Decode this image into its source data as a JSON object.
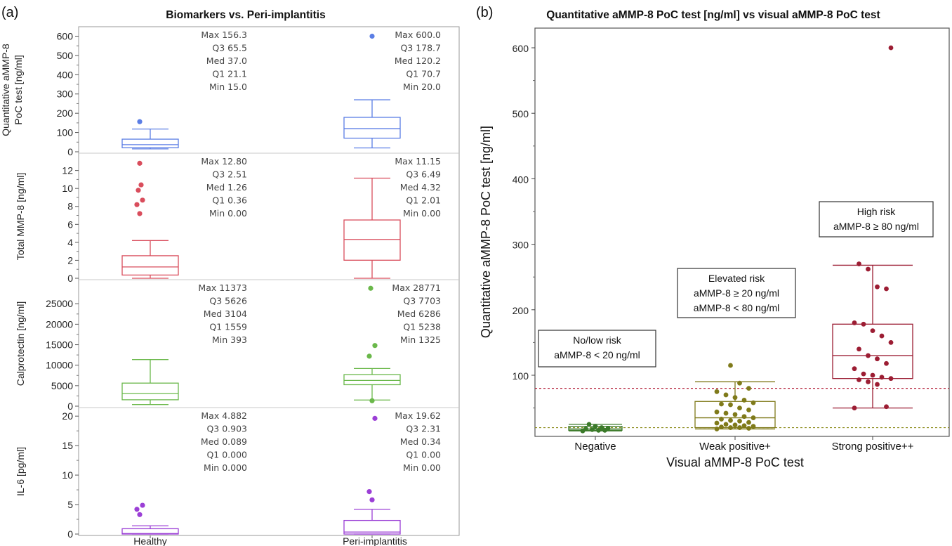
{
  "figure": {
    "panel_a_label": "(a)",
    "panel_b_label": "(b)"
  },
  "chart_data": [
    {
      "type": "box",
      "title": "Biomarkers vs. Peri-implantitis",
      "categories": [
        "Healthy",
        "Peri-implantitis"
      ],
      "subplots": [
        {
          "ylabel": "Quantitative aMMP-8 PoC test [ng/ml]",
          "ylabel_lines": [
            "Quantitative aMMP-8",
            "PoC test [ng/ml]"
          ],
          "ylim": [
            0,
            620
          ],
          "yticks": [
            0,
            100,
            200,
            300,
            400,
            500,
            600
          ],
          "ytick_labels": [
            "0",
            "100",
            "200",
            "300",
            "400",
            "500",
            "600"
          ],
          "color": "#5b7ee5",
          "groups": [
            {
              "whisker_low": 15.0,
              "q1": 21.1,
              "median": 37.0,
              "q3": 65.5,
              "whisker_high": 118,
              "outliers": [
                156.3
              ],
              "stats": [
                "Max 156.3",
                "Q3  65.5",
                "Med 37.0",
                "Q1  21.1",
                "Min 15.0"
              ]
            },
            {
              "whisker_low": 20.0,
              "q1": 70.7,
              "median": 120.2,
              "q3": 178.7,
              "whisker_high": 270,
              "outliers": [
                600.0
              ],
              "stats": [
                "Max 600.0",
                "Q3  178.7",
                "Med 120.2",
                "Q1  70.7",
                "Min 20.0"
              ]
            }
          ]
        },
        {
          "ylabel": "Total MMP-8 [ng/ml]",
          "ylabel_lines": [
            "Total MMP-8 [ng/ml]"
          ],
          "ylim": [
            0,
            13.3
          ],
          "yticks": [
            0,
            2,
            4,
            6,
            8,
            10,
            12
          ],
          "ytick_labels": [
            "0",
            "2",
            "4",
            "6",
            "8",
            "10",
            "12"
          ],
          "color": "#d94d5c",
          "groups": [
            {
              "whisker_low": 0.0,
              "q1": 0.36,
              "median": 1.26,
              "q3": 2.51,
              "whisker_high": 4.2,
              "outliers": [
                7.2,
                8.2,
                8.7,
                9.8,
                10.4,
                12.8
              ],
              "stats": [
                "Max 12.80",
                "Q3  2.51",
                "Med 1.26",
                "Q1  0.36",
                "Min 0.00"
              ]
            },
            {
              "whisker_low": 0.0,
              "q1": 2.01,
              "median": 4.32,
              "q3": 6.49,
              "whisker_high": 11.15,
              "outliers": [],
              "stats": [
                "Max 11.15",
                "Q3  6.49",
                "Med 4.32",
                "Q1  2.01",
                "Min 0.00"
              ]
            }
          ]
        },
        {
          "ylabel": "Calprotectin [ng/ml]",
          "ylabel_lines": [
            "Calprotectin [ng/ml]"
          ],
          "ylim": [
            0,
            29500
          ],
          "yticks": [
            0,
            5000,
            10000,
            15000,
            20000,
            25000
          ],
          "ytick_labels": [
            "0",
            "5000",
            "10000",
            "15000",
            "20000",
            "25000"
          ],
          "color": "#6ab84a",
          "groups": [
            {
              "whisker_low": 393,
              "q1": 1559,
              "median": 3104,
              "q3": 5626,
              "whisker_high": 11373,
              "outliers": [],
              "stats": [
                "Max 11373",
                "Q3  5626",
                "Med 3104",
                "Q1  1559",
                "Min 393"
              ]
            },
            {
              "whisker_low": 1500,
              "q1": 5238,
              "median": 6286,
              "q3": 7703,
              "whisker_high": 9200,
              "outliers": [
                1325,
                12200,
                14800,
                28771
              ],
              "stats": [
                "Max 28771",
                "Q3  7703",
                "Med 6286",
                "Q1  5238",
                "Min 1325"
              ]
            }
          ]
        },
        {
          "ylabel": "IL-6 [pg/ml]",
          "ylabel_lines": [
            "IL-6 [pg/ml]"
          ],
          "ylim": [
            0,
            20.5
          ],
          "yticks": [
            0,
            5,
            10,
            15,
            20
          ],
          "ytick_labels": [
            "0",
            "5",
            "10",
            "15",
            "20"
          ],
          "color": "#9b3fd6",
          "groups": [
            {
              "whisker_low": 0.0,
              "q1": 0.0,
              "median": 0.089,
              "q3": 0.903,
              "whisker_high": 1.4,
              "outliers": [
                3.3,
                4.2,
                4.882
              ],
              "stats": [
                "Max 4.882",
                "Q3  0.903",
                "Med 0.089",
                "Q1  0.000",
                "Min 0.000"
              ]
            },
            {
              "whisker_low": 0.0,
              "q1": 0.0,
              "median": 0.34,
              "q3": 2.31,
              "whisker_high": 4.2,
              "outliers": [
                5.8,
                7.2,
                19.62
              ],
              "stats": [
                "Max 19.62",
                "Q3  2.31",
                "Med 0.34",
                "Q1  0.00",
                "Min 0.00"
              ]
            }
          ]
        }
      ]
    },
    {
      "type": "box",
      "title": "Quantitative aMMP-8 PoC test [ng/ml] vs visual aMMP-8 PoC test",
      "xlabel": "Visual aMMP-8 PoC test",
      "ylabel": "Quantitative aMMP-8 PoC test [ng/ml]",
      "ylim": [
        0,
        640
      ],
      "yticks": [
        100,
        200,
        300,
        400,
        500,
        600
      ],
      "ytick_labels": [
        "100",
        "200",
        "300",
        "400",
        "500",
        "600"
      ],
      "categories": [
        "Negative",
        "Weak positive+",
        "Strong positive++"
      ],
      "reference_lines": [
        {
          "y": 80,
          "color": "#b5223c"
        },
        {
          "y": 20,
          "color": "#8c8c1a"
        }
      ],
      "annotations": [
        {
          "lines": [
            "No/low risk",
            "aMMP-8 < 20 ng/ml"
          ]
        },
        {
          "lines": [
            "Elevated risk",
            "aMMP-8 ≥ 20 ng/ml",
            "aMMP-8 < 80 ng/ml"
          ]
        },
        {
          "lines": [
            "High risk",
            "aMMP-8 ≥ 80 ng/ml"
          ]
        }
      ],
      "groups": [
        {
          "color": "#3b7a2a",
          "whisker_low": 15,
          "q1": 16,
          "median": 18,
          "q3": 22,
          "whisker_high": 25,
          "points": [
            15,
            16,
            16,
            17,
            18,
            19,
            20,
            22,
            25
          ]
        },
        {
          "color": "#7f7a1a",
          "whisker_low": 18,
          "q1": 20,
          "median": 35,
          "q3": 60,
          "whisker_high": 90,
          "points": [
            18,
            19,
            20,
            20,
            21,
            22,
            23,
            24,
            25,
            27,
            28,
            30,
            31,
            33,
            35,
            37,
            40,
            42,
            44,
            47,
            50,
            55,
            56,
            58,
            62,
            66,
            70,
            75,
            80,
            88,
            115
          ]
        },
        {
          "color": "#9c1d33",
          "whisker_low": 50,
          "q1": 95,
          "median": 130,
          "q3": 178,
          "whisker_high": 268,
          "points": [
            50,
            52,
            86,
            90,
            93,
            95,
            97,
            100,
            102,
            110,
            118,
            125,
            130,
            140,
            150,
            160,
            168,
            178,
            180,
            232,
            235,
            262,
            270,
            600
          ]
        }
      ]
    }
  ]
}
